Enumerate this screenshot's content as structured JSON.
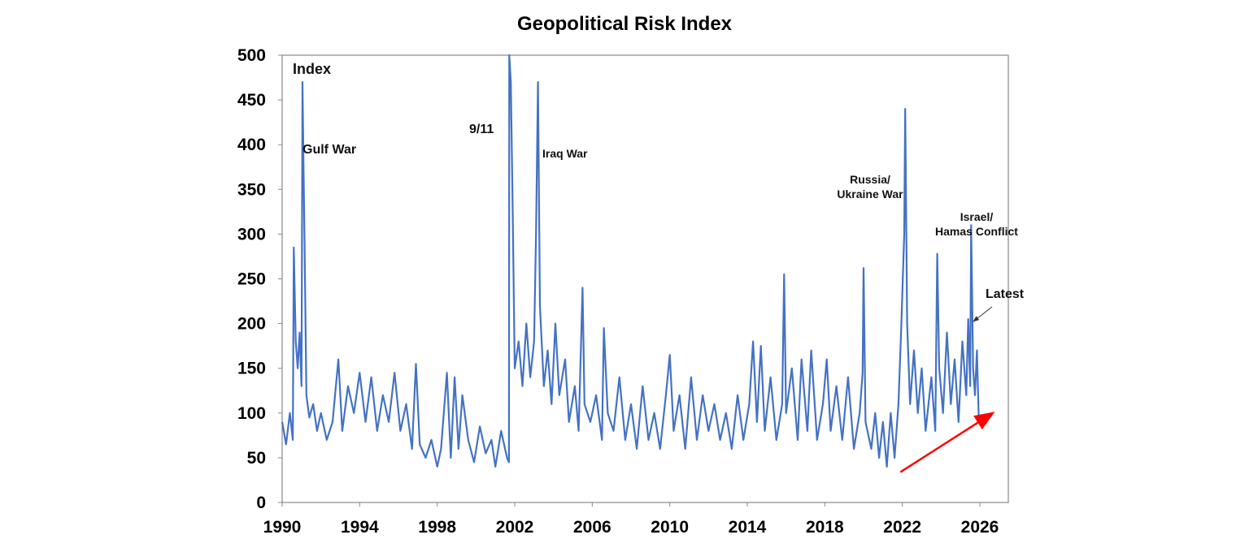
{
  "chart_data": {
    "type": "line",
    "title": "Geopolitical Risk Index",
    "ylabel": "Index",
    "xlabel": "",
    "xlim": [
      1990,
      2027.5
    ],
    "ylim": [
      0,
      500
    ],
    "xticks": [
      "1990",
      "1994",
      "1998",
      "2002",
      "2006",
      "2010",
      "2014",
      "2018",
      "2022",
      "2026"
    ],
    "yticks": [
      "0",
      "50",
      "100",
      "150",
      "200",
      "250",
      "300",
      "350",
      "400",
      "450",
      "500"
    ],
    "grid": false,
    "line_color": "#4472C4",
    "arrow_color": "#FF0000",
    "annotations": {
      "gulf_war": "Gulf War",
      "nine_eleven": "9/11",
      "iraq_war": "Iraq War",
      "russia_ukraine": [
        "Russia/",
        "Ukraine War"
      ],
      "israel_hamas": [
        "Israel/",
        "Hamas Conflict"
      ],
      "latest": "Latest"
    },
    "trend_arrow": {
      "from": [
        2021.9,
        34
      ],
      "to": [
        2026.6,
        99
      ]
    },
    "series": [
      {
        "x": [
          1990.0,
          1990.2,
          1990.4,
          1990.55,
          1990.6,
          1990.7,
          1990.8,
          1990.9,
          1991.0,
          1991.05,
          1991.1,
          1991.15,
          1991.25,
          1991.4,
          1991.6,
          1991.8,
          1992.0,
          1992.3,
          1992.6,
          1992.9,
          1993.1,
          1993.4,
          1993.7,
          1994.0,
          1994.3,
          1994.6,
          1994.9,
          1995.2,
          1995.5,
          1995.8,
          1996.1,
          1996.4,
          1996.7,
          1996.9,
          1997.1,
          1997.4,
          1997.7,
          1998.0,
          1998.2,
          1998.5,
          1998.7,
          1998.9,
          1999.1,
          1999.3,
          1999.6,
          1999.9,
          2000.2,
          2000.5,
          2000.8,
          2001.0,
          2001.3,
          2001.6,
          2001.7,
          2001.72,
          2001.8,
          2001.9,
          2002.0,
          2002.2,
          2002.4,
          2002.6,
          2002.8,
          2003.0,
          2003.1,
          2003.2,
          2003.3,
          2003.5,
          2003.7,
          2003.9,
          2004.1,
          2004.3,
          2004.6,
          2004.8,
          2005.1,
          2005.3,
          2005.5,
          2005.6,
          2005.9,
          2006.2,
          2006.5,
          2006.6,
          2006.8,
          2007.1,
          2007.4,
          2007.7,
          2008.0,
          2008.3,
          2008.6,
          2008.9,
          2009.2,
          2009.5,
          2009.8,
          2010.0,
          2010.2,
          2010.5,
          2010.8,
          2011.1,
          2011.4,
          2011.7,
          2012.0,
          2012.3,
          2012.6,
          2012.9,
          2013.2,
          2013.5,
          2013.8,
          2014.1,
          2014.3,
          2014.5,
          2014.7,
          2014.9,
          2015.2,
          2015.5,
          2015.8,
          2015.9,
          2016.0,
          2016.3,
          2016.6,
          2016.8,
          2017.1,
          2017.3,
          2017.6,
          2017.9,
          2018.1,
          2018.3,
          2018.6,
          2018.9,
          2019.2,
          2019.5,
          2019.8,
          2019.95,
          2020.0,
          2020.1,
          2020.4,
          2020.6,
          2020.8,
          2021.0,
          2021.2,
          2021.4,
          2021.6,
          2021.8,
          2021.95,
          2022.1,
          2022.15,
          2022.25,
          2022.4,
          2022.6,
          2022.8,
          2023.0,
          2023.2,
          2023.5,
          2023.7,
          2023.8,
          2023.9,
          2024.1,
          2024.3,
          2024.5,
          2024.7,
          2024.9,
          2025.1,
          2025.3,
          2025.4,
          2025.5,
          2025.55,
          2025.65,
          2025.75,
          2025.85,
          2025.95
        ],
        "y": [
          90,
          65,
          100,
          70,
          285,
          180,
          150,
          190,
          130,
          470,
          380,
          300,
          120,
          95,
          110,
          80,
          100,
          70,
          90,
          160,
          80,
          130,
          100,
          145,
          90,
          140,
          80,
          120,
          90,
          145,
          80,
          110,
          60,
          155,
          65,
          50,
          70,
          40,
          60,
          145,
          50,
          140,
          60,
          120,
          70,
          45,
          85,
          55,
          70,
          40,
          80,
          50,
          45,
          500,
          470,
          320,
          150,
          180,
          130,
          200,
          140,
          180,
          300,
          470,
          220,
          130,
          170,
          110,
          200,
          120,
          160,
          90,
          130,
          80,
          240,
          110,
          90,
          120,
          70,
          195,
          100,
          80,
          140,
          70,
          110,
          60,
          130,
          70,
          100,
          60,
          120,
          165,
          80,
          120,
          60,
          140,
          70,
          120,
          80,
          110,
          70,
          100,
          60,
          120,
          70,
          110,
          180,
          90,
          175,
          80,
          140,
          70,
          110,
          255,
          100,
          150,
          70,
          160,
          80,
          170,
          70,
          110,
          160,
          80,
          130,
          70,
          140,
          60,
          100,
          145,
          262,
          90,
          60,
          100,
          50,
          90,
          40,
          100,
          50,
          110,
          200,
          300,
          440,
          200,
          110,
          170,
          100,
          150,
          80,
          140,
          80,
          278,
          150,
          100,
          190,
          110,
          160,
          90,
          180,
          120,
          205,
          130,
          310,
          150,
          120,
          170,
          90
        ]
      }
    ]
  }
}
